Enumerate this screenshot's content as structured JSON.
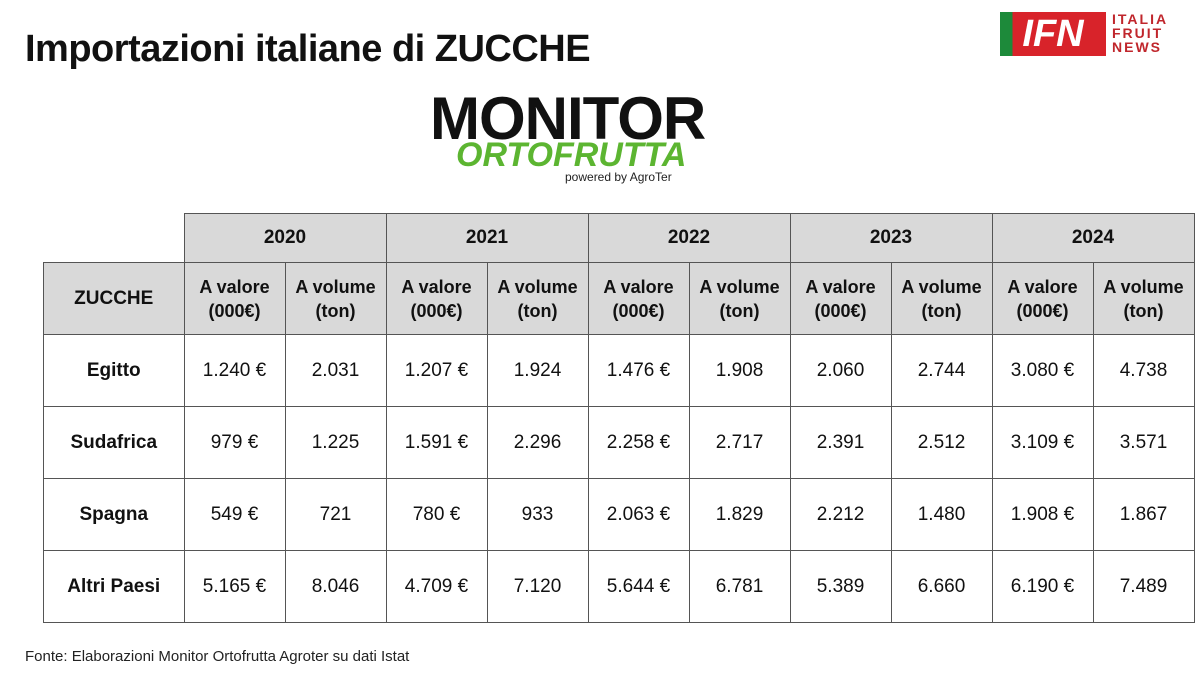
{
  "header": {
    "title": "Importazioni italiane di ZUCCHE",
    "ifn_logo": {
      "mark": "IFN",
      "lines": [
        "ITALIA",
        "FRUIT",
        "NEWS"
      ]
    },
    "monitor_logo": {
      "line1": "MONITOR",
      "line2": "ORTOFRUTTA",
      "powered": "powered by AgroTer"
    }
  },
  "table": {
    "corner": "ZUCCHE",
    "years": [
      {
        "year": "2020",
        "columns": [
          "A valore (000€)",
          "A volume (ton)"
        ]
      },
      {
        "year": "2021",
        "columns": [
          "A valore (000€)",
          "A volume (ton)"
        ]
      },
      {
        "year": "2022",
        "columns": [
          "A valore (000€)",
          "A volume (ton)"
        ]
      },
      {
        "year": "2023",
        "columns": [
          "A valore (000€)",
          "A volume (ton)"
        ]
      },
      {
        "year": "2024",
        "columns": [
          "A valore (000€)",
          "A volume (ton)"
        ]
      }
    ],
    "rows": [
      {
        "label": "Egitto",
        "cells": [
          "1.240 €",
          "2.031",
          "1.207 €",
          "1.924",
          "1.476 €",
          "1.908",
          "2.060",
          "2.744",
          "3.080 €",
          "4.738"
        ]
      },
      {
        "label": "Sudafrica",
        "cells": [
          "979 €",
          "1.225",
          "1.591 €",
          "2.296",
          "2.258 €",
          "2.717",
          "2.391",
          "2.512",
          "3.109 €",
          "3.571"
        ]
      },
      {
        "label": "Spagna",
        "cells": [
          "549 €",
          "721",
          "780 €",
          "933",
          "2.063 €",
          "1.829",
          "2.212",
          "1.480",
          "1.908 €",
          "1.867"
        ]
      },
      {
        "label": "Altri Paesi",
        "cells": [
          "5.165 €",
          "8.046",
          "4.709 €",
          "7.120",
          "5.644 €",
          "6.781",
          "5.389",
          "6.660",
          "6.190 €",
          "7.489"
        ]
      }
    ]
  },
  "footer": {
    "source": "Fonte: Elaborazioni Monitor Ortofrutta Agroter su dati Istat"
  }
}
